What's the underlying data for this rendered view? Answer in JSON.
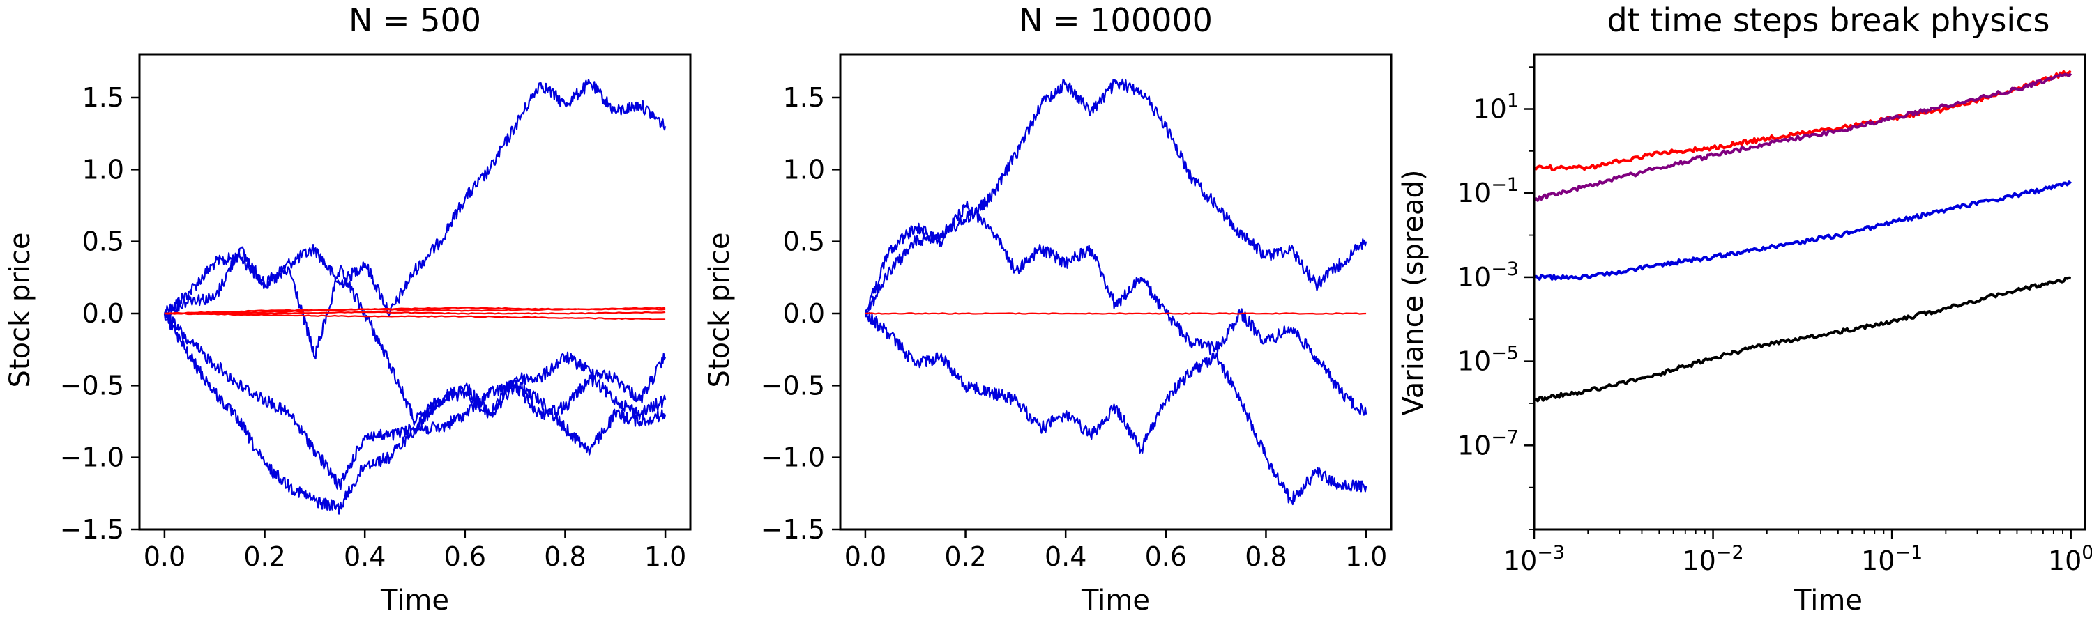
{
  "figure": {
    "panels": [
      {
        "title": "N = 500",
        "xlabel": "Time",
        "ylabel": "Stock price"
      },
      {
        "title": "N = 100000",
        "xlabel": "Time",
        "ylabel": "Stock price"
      },
      {
        "title": "dt time steps break physics",
        "xlabel": "Time",
        "ylabel": "Variance (spread)"
      }
    ]
  },
  "chart_data": [
    {
      "type": "line",
      "title": "N = 500",
      "xlabel": "Time",
      "ylabel": "Stock price",
      "xlim": [
        -0.05,
        1.05
      ],
      "ylim": [
        -1.5,
        1.8
      ],
      "xticks": [
        "0.0",
        "0.2",
        "0.4",
        "0.6",
        "0.8",
        "1.0"
      ],
      "yticks": [
        "-1.5",
        "-1.0",
        "-0.5",
        "0.0",
        "0.5",
        "1.0",
        "1.5"
      ],
      "grid": false,
      "colors": {
        "random_walk": "#0000dd",
        "flat": "#ff0000"
      },
      "series": [
        {
          "color": "#0000dd",
          "x": [
            0,
            0.05,
            0.1,
            0.15,
            0.2,
            0.25,
            0.3,
            0.35,
            0.4,
            0.45,
            0.5,
            0.55,
            0.6,
            0.65,
            0.7,
            0.75,
            0.8,
            0.85,
            0.9,
            0.95,
            1.0
          ],
          "y": [
            0,
            0.15,
            0.35,
            0.4,
            0.2,
            0.35,
            0.45,
            0.2,
            0.35,
            0.0,
            0.3,
            0.5,
            0.8,
            1.0,
            1.3,
            1.6,
            1.45,
            1.6,
            1.4,
            1.45,
            1.3
          ]
        },
        {
          "color": "#0000dd",
          "x": [
            0,
            0.05,
            0.1,
            0.15,
            0.2,
            0.25,
            0.3,
            0.35,
            0.4,
            0.45,
            0.5,
            0.55,
            0.6,
            0.65,
            0.7,
            0.75,
            0.8,
            0.85,
            0.9,
            0.95,
            1.0
          ],
          "y": [
            0,
            0.1,
            0.1,
            0.45,
            0.2,
            0.3,
            -0.3,
            0.3,
            0.0,
            -0.35,
            -0.75,
            -0.6,
            -0.5,
            -0.7,
            -0.45,
            -0.45,
            -0.3,
            -0.4,
            -0.45,
            -0.6,
            -0.3
          ]
        },
        {
          "color": "#0000dd",
          "x": [
            0,
            0.05,
            0.1,
            0.15,
            0.2,
            0.25,
            0.3,
            0.35,
            0.4,
            0.45,
            0.5,
            0.55,
            0.6,
            0.65,
            0.7,
            0.75,
            0.8,
            0.85,
            0.9,
            0.95,
            1.0
          ],
          "y": [
            0,
            -0.3,
            -0.55,
            -0.75,
            -1.05,
            -1.2,
            -1.3,
            -1.35,
            -1.05,
            -1.0,
            -0.8,
            -0.8,
            -0.7,
            -0.55,
            -0.5,
            -0.7,
            -0.65,
            -0.45,
            -0.6,
            -0.7,
            -0.6
          ]
        },
        {
          "color": "#0000dd",
          "x": [
            0,
            0.05,
            0.1,
            0.15,
            0.2,
            0.25,
            0.3,
            0.35,
            0.4,
            0.45,
            0.5,
            0.55,
            0.6,
            0.65,
            0.7,
            0.75,
            0.8,
            0.85,
            0.9,
            0.95,
            1.0
          ],
          "y": [
            0,
            -0.2,
            -0.35,
            -0.5,
            -0.6,
            -0.7,
            -0.95,
            -1.2,
            -0.85,
            -0.85,
            -0.8,
            -0.6,
            -0.55,
            -0.7,
            -0.5,
            -0.6,
            -0.8,
            -0.95,
            -0.7,
            -0.75,
            -0.7
          ]
        },
        {
          "color": "#ff0000",
          "x": [
            0,
            0.2,
            0.4,
            0.6,
            0.8,
            1.0
          ],
          "y": [
            0,
            0.01,
            0.03,
            0.04,
            0.03,
            0.04
          ]
        },
        {
          "color": "#ff0000",
          "x": [
            0,
            0.2,
            0.4,
            0.6,
            0.8,
            1.0
          ],
          "y": [
            0,
            0.02,
            0.03,
            0.02,
            0.03,
            0.03
          ]
        },
        {
          "color": "#ff0000",
          "x": [
            0,
            0.2,
            0.4,
            0.6,
            0.8,
            1.0
          ],
          "y": [
            0,
            -0.01,
            -0.02,
            -0.02,
            -0.03,
            -0.04
          ]
        },
        {
          "color": "#ff0000",
          "x": [
            0,
            0.2,
            0.4,
            0.6,
            0.8,
            1.0
          ],
          "y": [
            0,
            0.0,
            0.01,
            0.0,
            0.0,
            0.01
          ]
        }
      ]
    },
    {
      "type": "line",
      "title": "N = 100000",
      "xlabel": "Time",
      "ylabel": "Stock price",
      "xlim": [
        -0.05,
        1.05
      ],
      "ylim": [
        -1.5,
        1.8
      ],
      "xticks": [
        "0.0",
        "0.2",
        "0.4",
        "0.6",
        "0.8",
        "1.0"
      ],
      "yticks": [
        "-1.5",
        "-1.0",
        "-0.5",
        "0.0",
        "0.5",
        "1.0",
        "1.5"
      ],
      "grid": false,
      "series": [
        {
          "color": "#0000dd",
          "x": [
            0,
            0.05,
            0.1,
            0.15,
            0.2,
            0.25,
            0.3,
            0.35,
            0.4,
            0.45,
            0.5,
            0.55,
            0.6,
            0.65,
            0.7,
            0.75,
            0.8,
            0.85,
            0.9,
            0.95,
            1.0
          ],
          "y": [
            0,
            0.3,
            0.5,
            0.55,
            0.65,
            0.8,
            1.1,
            1.45,
            1.6,
            1.4,
            1.6,
            1.55,
            1.3,
            0.95,
            0.75,
            0.55,
            0.4,
            0.45,
            0.2,
            0.35,
            0.5
          ]
        },
        {
          "color": "#0000dd",
          "x": [
            0,
            0.05,
            0.1,
            0.15,
            0.2,
            0.25,
            0.3,
            0.35,
            0.4,
            0.45,
            0.5,
            0.55,
            0.6,
            0.65,
            0.7,
            0.75,
            0.8,
            0.85,
            0.9,
            0.95,
            1.0
          ],
          "y": [
            0,
            0.45,
            0.6,
            0.5,
            0.75,
            0.6,
            0.3,
            0.45,
            0.35,
            0.45,
            0.05,
            0.25,
            0.0,
            -0.2,
            -0.25,
            0.0,
            -0.2,
            -0.1,
            -0.3,
            -0.55,
            -0.7
          ]
        },
        {
          "color": "#0000dd",
          "x": [
            0,
            0.05,
            0.1,
            0.15,
            0.2,
            0.25,
            0.3,
            0.35,
            0.4,
            0.45,
            0.5,
            0.55,
            0.6,
            0.65,
            0.7,
            0.75,
            0.8,
            0.85,
            0.9,
            0.95,
            1.0
          ],
          "y": [
            0,
            -0.15,
            -0.35,
            -0.3,
            -0.5,
            -0.55,
            -0.6,
            -0.8,
            -0.7,
            -0.85,
            -0.65,
            -0.95,
            -0.6,
            -0.4,
            -0.3,
            -0.6,
            -1.0,
            -1.3,
            -1.1,
            -1.2,
            -1.2
          ]
        },
        {
          "color": "#ff0000",
          "x": [
            0,
            0.2,
            0.4,
            0.6,
            0.8,
            1.0
          ],
          "y": [
            0,
            0.0,
            0.0,
            0.0,
            0.0,
            0.0
          ]
        }
      ]
    },
    {
      "type": "line",
      "title": "dt time steps break physics",
      "xlabel": "Time",
      "ylabel": "Variance (spread)",
      "xscale": "log",
      "yscale": "log",
      "xlim": [
        0.001,
        1.2
      ],
      "ylim": [
        1e-09,
        200.0
      ],
      "xticks": [
        "10^-3",
        "10^-2",
        "10^-1",
        "10^0"
      ],
      "yticks": [
        "10^-7",
        "10^-5",
        "10^-3",
        "10^-1",
        "10^1"
      ],
      "grid": false,
      "series": [
        {
          "color": "#ff0000",
          "x": [
            0.001,
            0.002,
            0.005,
            0.01,
            0.02,
            0.05,
            0.1,
            0.2,
            0.5,
            1.0
          ],
          "y": [
            0.4,
            0.4,
            0.9,
            1.2,
            2.0,
            3.5,
            6.0,
            10,
            30,
            80
          ]
        },
        {
          "color": "#800080",
          "x": [
            0.001,
            0.002,
            0.005,
            0.01,
            0.02,
            0.05,
            0.1,
            0.2,
            0.5,
            1.0
          ],
          "y": [
            0.07,
            0.15,
            0.4,
            0.8,
            1.5,
            3.0,
            6.0,
            12,
            30,
            70
          ]
        },
        {
          "color": "#0000dd",
          "x": [
            0.001,
            0.002,
            0.005,
            0.01,
            0.02,
            0.05,
            0.1,
            0.2,
            0.5,
            1.0
          ],
          "y": [
            0.001,
            0.001,
            0.002,
            0.003,
            0.005,
            0.01,
            0.02,
            0.04,
            0.09,
            0.17
          ]
        },
        {
          "color": "#000000",
          "x": [
            0.001,
            0.002,
            0.005,
            0.01,
            0.02,
            0.05,
            0.1,
            0.2,
            0.5,
            1.0
          ],
          "y": [
            1.2e-06,
            2e-06,
            5e-06,
            1.2e-05,
            2.5e-05,
            5e-05,
            9e-05,
            0.00018,
            0.0005,
            0.00095
          ]
        }
      ]
    }
  ]
}
